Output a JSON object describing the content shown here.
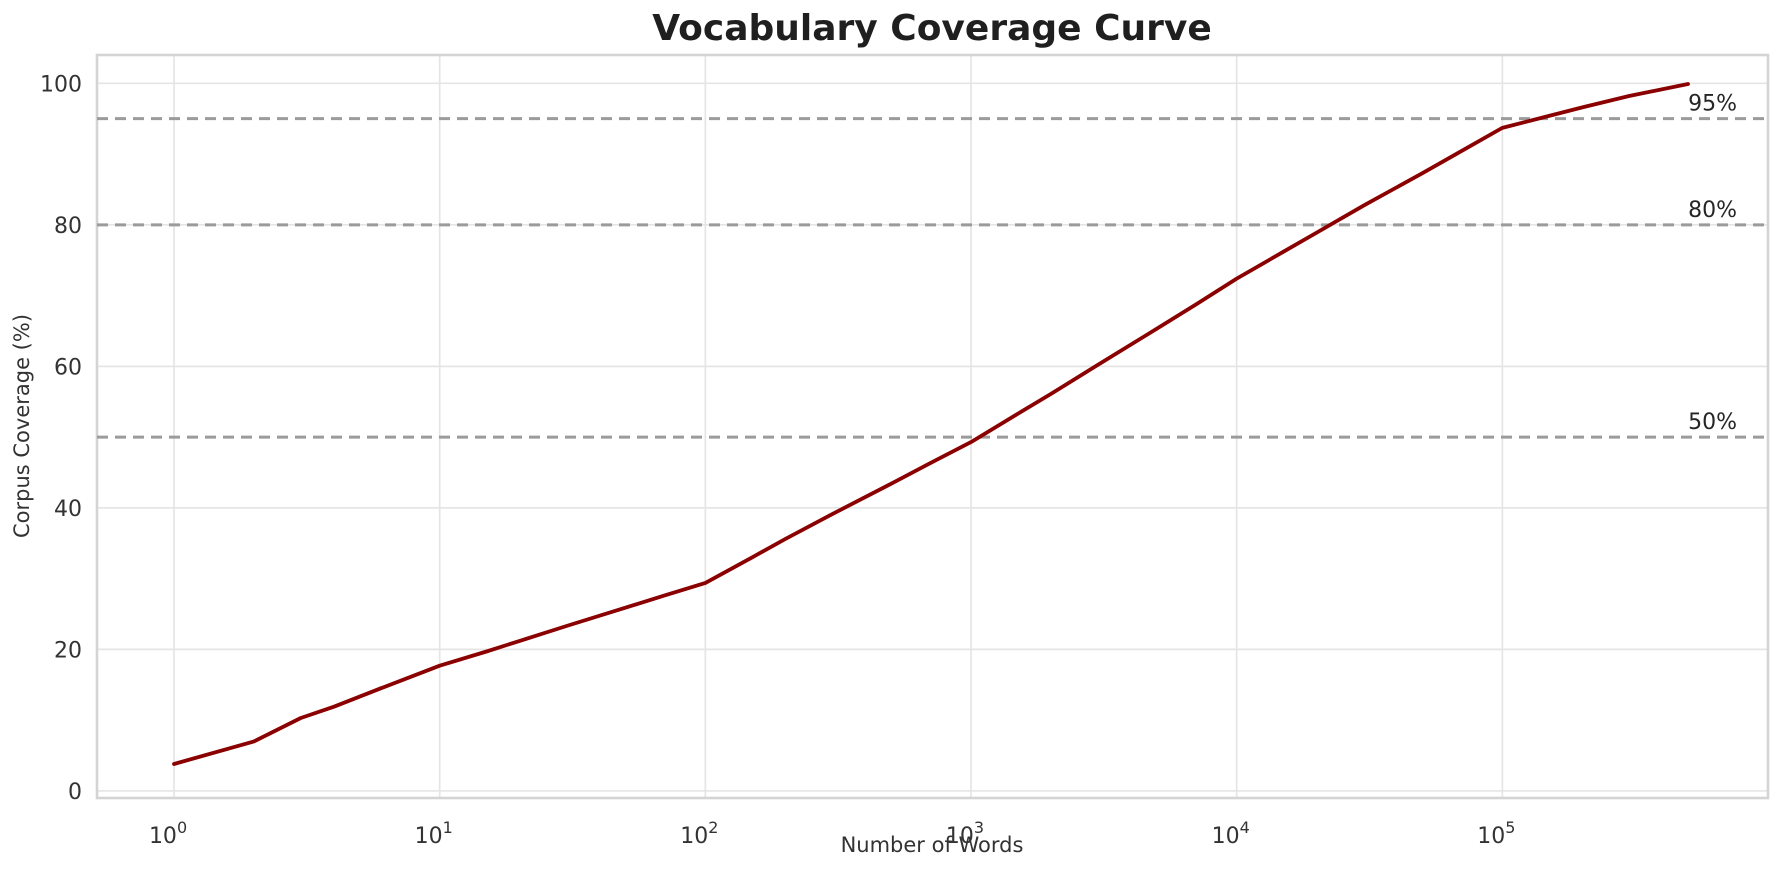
{
  "chart_data": {
    "type": "line",
    "title": "Vocabulary Coverage Curve",
    "xlabel": "Number of Words",
    "ylabel": "Corpus Coverage (%)",
    "x_scale": "log",
    "xlim_log10": [
      -0.29,
      6.0
    ],
    "ylim": [
      -1,
      104
    ],
    "grid": true,
    "legend": "none",
    "x_ticks": [
      {
        "base": "10",
        "exp": "0",
        "value": 1
      },
      {
        "base": "10",
        "exp": "1",
        "value": 10
      },
      {
        "base": "10",
        "exp": "2",
        "value": 100
      },
      {
        "base": "10",
        "exp": "3",
        "value": 1000
      },
      {
        "base": "10",
        "exp": "4",
        "value": 10000
      },
      {
        "base": "10",
        "exp": "5",
        "value": 100000
      }
    ],
    "y_ticks": [
      0,
      20,
      40,
      60,
      80,
      100
    ],
    "series": [
      {
        "name": "vocabulary-coverage",
        "color": "#8B0000",
        "x": [
          1,
          2,
          3,
          4,
          6,
          10,
          15,
          20,
          30,
          50,
          70,
          100,
          150,
          200,
          300,
          500,
          700,
          1000,
          1500,
          2000,
          3000,
          5000,
          7000,
          10000,
          15000,
          20000,
          30000,
          50000,
          70000,
          100000,
          150000,
          200000,
          300000,
          500000
        ],
        "y": [
          3.8,
          7.0,
          10.3,
          11.9,
          14.5,
          17.7,
          19.7,
          21.2,
          23.3,
          25.9,
          27.6,
          29.4,
          33.0,
          35.6,
          39.1,
          43.4,
          46.3,
          49.3,
          53.3,
          56.1,
          60.2,
          65.3,
          68.7,
          72.4,
          76.2,
          78.9,
          82.7,
          87.3,
          90.4,
          93.7,
          95.4,
          96.6,
          98.2,
          99.9
        ]
      }
    ],
    "reference_lines": [
      {
        "value": 95,
        "label": "95%"
      },
      {
        "value": 80,
        "label": "80%"
      },
      {
        "value": 50,
        "label": "50%"
      }
    ],
    "colors": {
      "line": "#8B0000",
      "reference_line": "#9b9b9b",
      "grid": "#e5e5e5",
      "spine": "#d4d4d4",
      "title_text": "#1f1f1f",
      "tick_text": "#333333",
      "annotation_text": "#262626"
    }
  }
}
